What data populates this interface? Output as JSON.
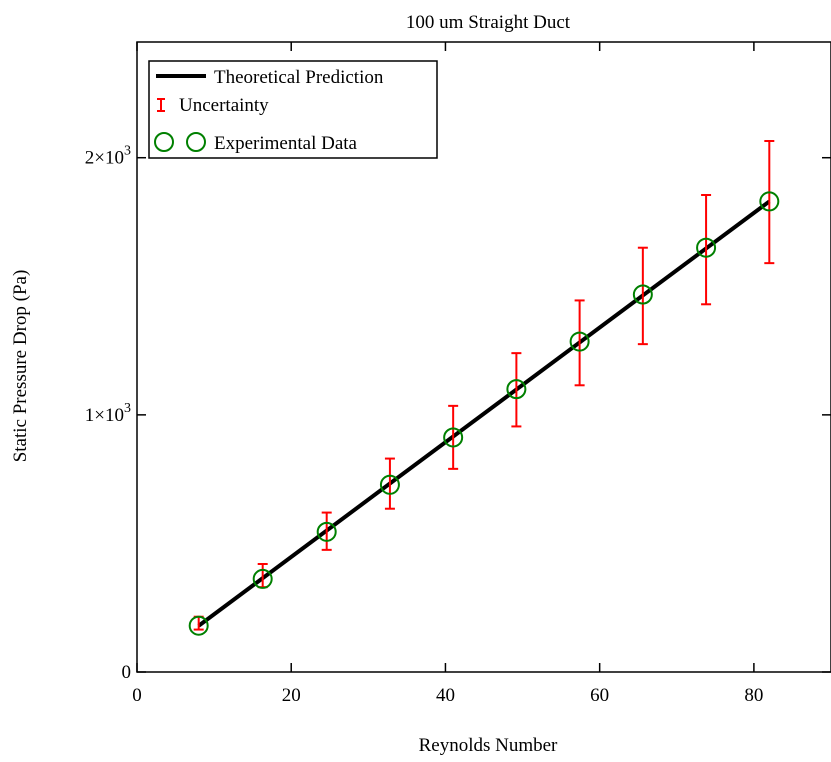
{
  "chart_data": {
    "type": "scatter",
    "title": "100 um Straight Duct",
    "xlabel": "Reynolds Number",
    "ylabel": "Static Pressure Drop (Pa)",
    "xlim": [
      0,
      90
    ],
    "ylim": [
      0,
      2450
    ],
    "x_ticks": [
      {
        "value": 0,
        "label": "0"
      },
      {
        "value": 20,
        "label": "20"
      },
      {
        "value": 40,
        "label": "40"
      },
      {
        "value": 60,
        "label": "60"
      },
      {
        "value": 80,
        "label": "80"
      }
    ],
    "y_ticks": [
      {
        "value": 0,
        "base": "0",
        "exp": ""
      },
      {
        "value": 1000,
        "base": "1×10",
        "exp": "3"
      },
      {
        "value": 2000,
        "base": "2×10",
        "exp": "3"
      }
    ],
    "legend": {
      "position": "top-left",
      "entries": [
        {
          "label": "Theoretical Prediction",
          "kind": "line"
        },
        {
          "label": "Uncertainty",
          "kind": "errorbar"
        },
        {
          "label": "Experimental Data",
          "kind": "marker"
        }
      ]
    },
    "grid": false,
    "colors": {
      "theory": "#000000",
      "uncertainty": "#ff0000",
      "experimental": "#008000"
    },
    "series": [
      {
        "name": "Theoretical Prediction",
        "kind": "line",
        "x": [
          8.0,
          82.0
        ],
        "y": [
          180,
          1830
        ]
      },
      {
        "name": "Experimental Data",
        "kind": "scatter",
        "x": [
          8.0,
          16.3,
          24.6,
          32.8,
          41.0,
          49.2,
          57.4,
          65.6,
          73.8,
          82.0
        ],
        "y": [
          180,
          362,
          545,
          728,
          912,
          1100,
          1285,
          1468,
          1650,
          1830
        ],
        "y_lower": [
          165,
          330,
          475,
          635,
          790,
          955,
          1115,
          1275,
          1430,
          1590
        ],
        "y_upper": [
          215,
          420,
          620,
          830,
          1035,
          1240,
          1445,
          1650,
          1855,
          2065
        ]
      }
    ]
  }
}
